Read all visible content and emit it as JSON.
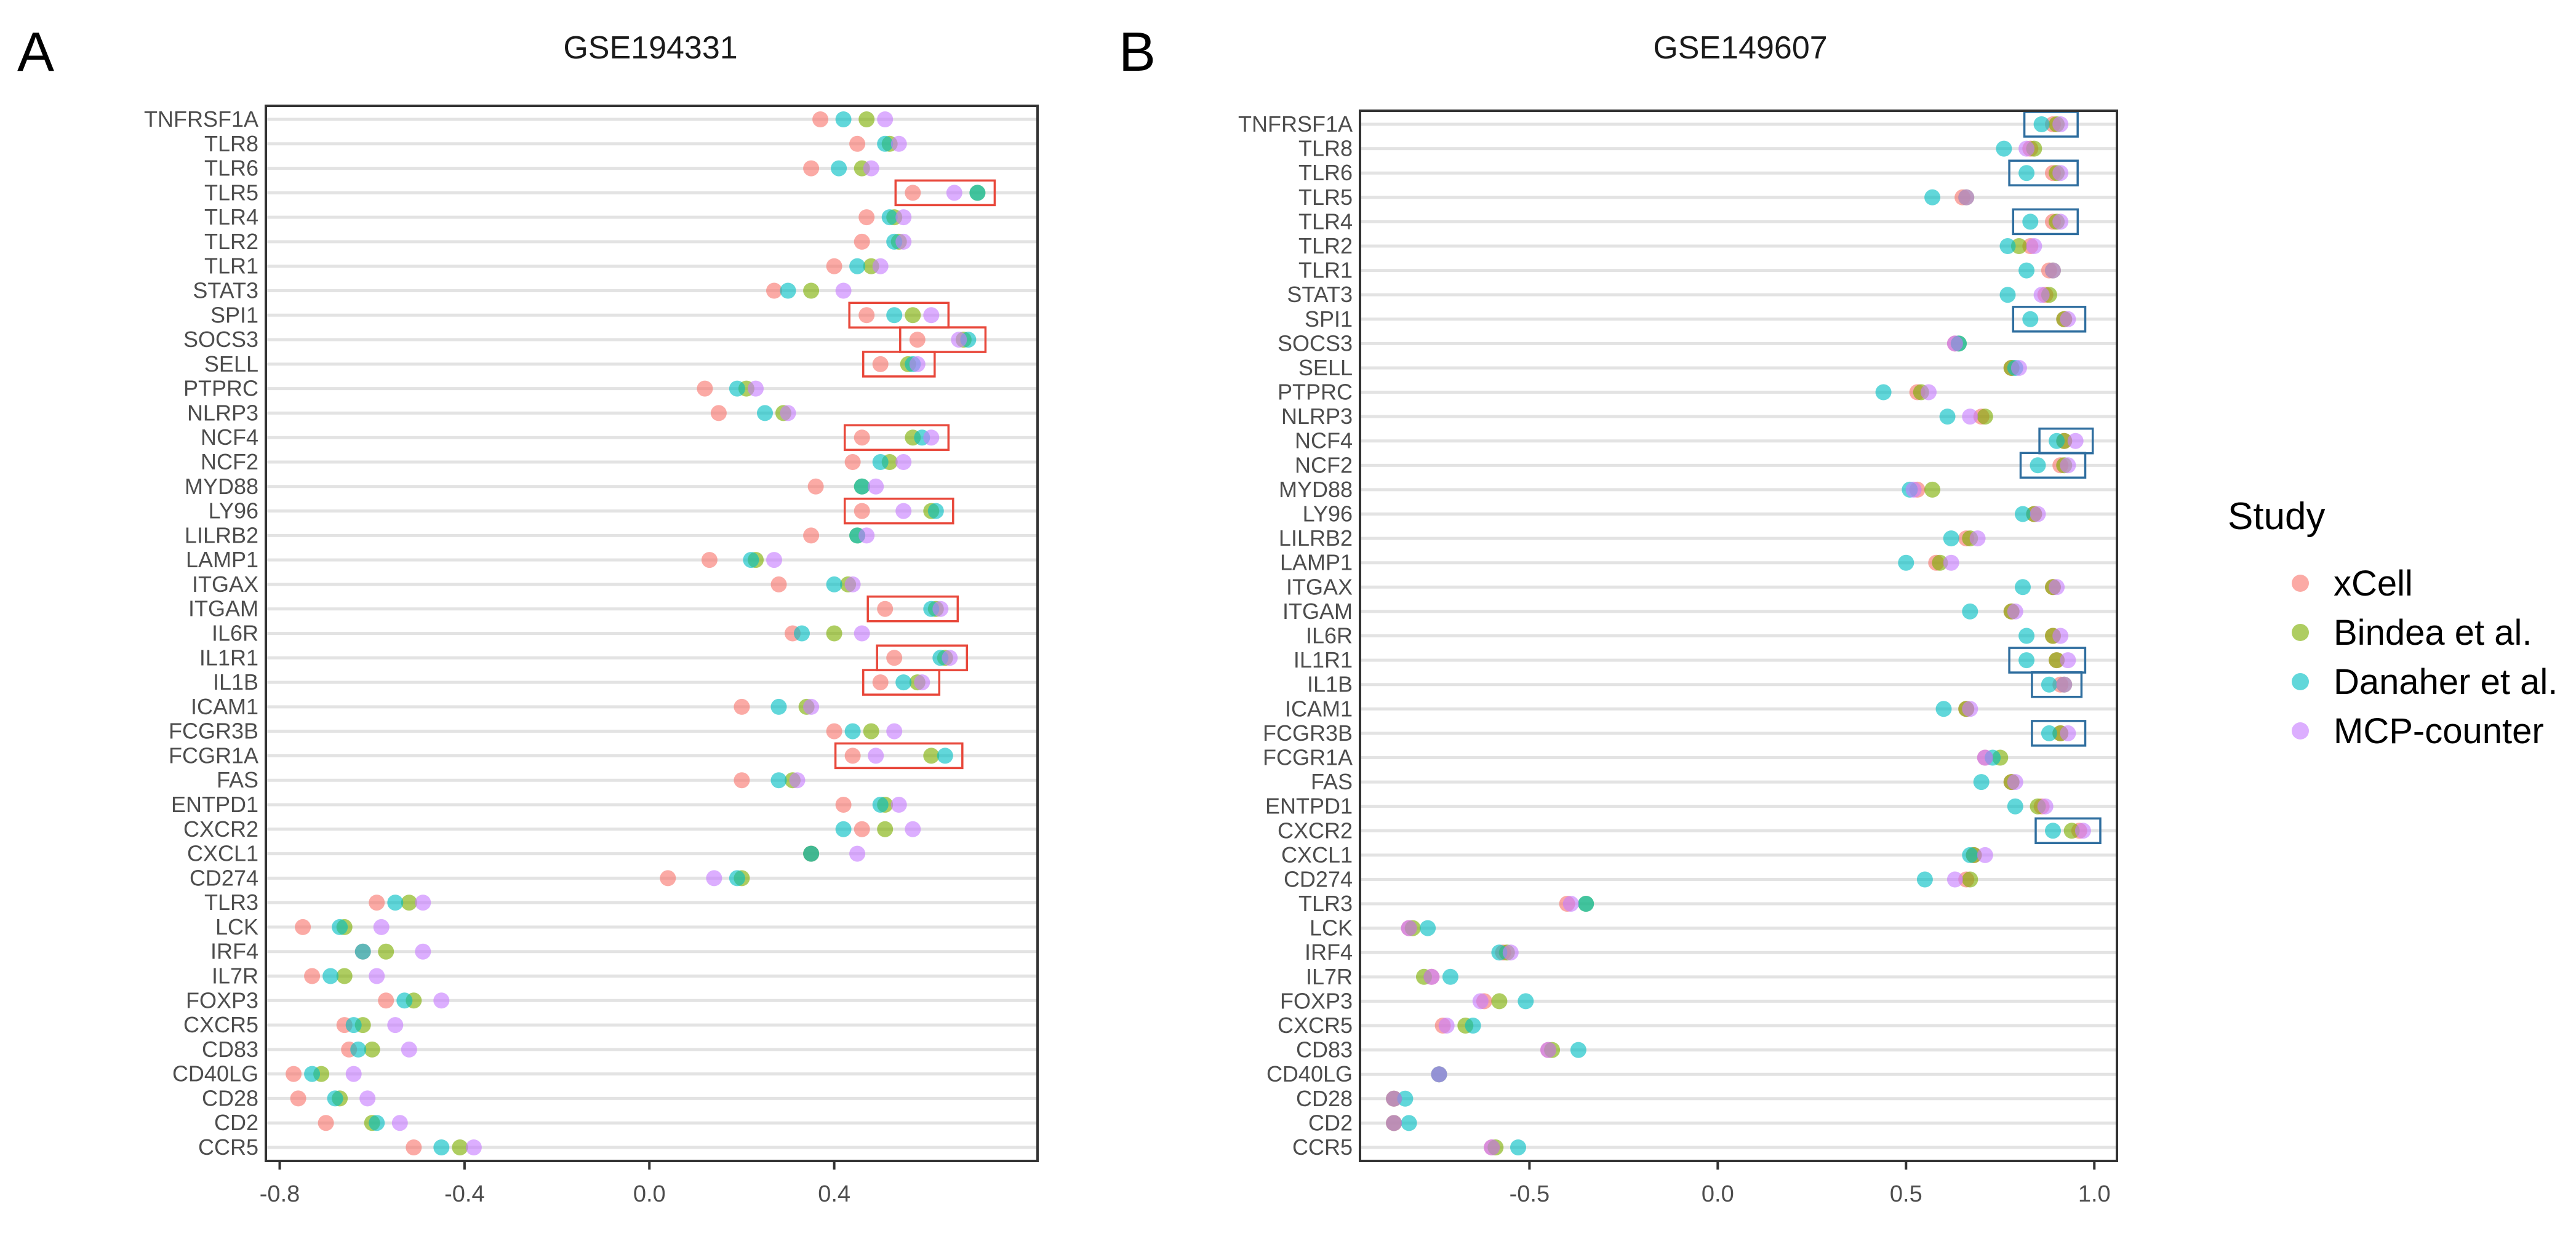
{
  "legend": {
    "title": "Study",
    "entries": [
      {
        "name": "xCell",
        "color": "#F8766D"
      },
      {
        "name": "Bindea et al.",
        "color": "#7CAE00"
      },
      {
        "name": "Danaher et al.",
        "color": "#00BFC4"
      },
      {
        "name": "MCP-counter",
        "color": "#C77CFF"
      }
    ]
  },
  "chart_data": [
    {
      "panel": "A",
      "type": "scatter",
      "title": "GSE194331",
      "xlabel": "",
      "ylabel": "",
      "xlim": [
        -0.83,
        0.84
      ],
      "xticks": [
        -0.8,
        -0.4,
        0.0,
        0.4
      ],
      "xtick_labels": [
        "-0.8",
        "-0.4",
        "0.0",
        "0.4"
      ],
      "grid": true,
      "box_color": "#E8483B",
      "categories": [
        "TNFRSF1A",
        "TLR8",
        "TLR6",
        "TLR5",
        "TLR4",
        "TLR2",
        "TLR1",
        "STAT3",
        "SPI1",
        "SOCS3",
        "SELL",
        "PTPRC",
        "NLRP3",
        "NCF4",
        "NCF2",
        "MYD88",
        "LY96",
        "LILRB2",
        "LAMP1",
        "ITGAX",
        "ITGAM",
        "IL6R",
        "IL1R1",
        "IL1B",
        "ICAM1",
        "FCGR3B",
        "FCGR1A",
        "FAS",
        "ENTPD1",
        "CXCR2",
        "CXCL1",
        "CD274",
        "TLR3",
        "LCK",
        "IRF4",
        "IL7R",
        "FOXP3",
        "CXCR5",
        "CD83",
        "CD40LG",
        "CD28",
        "CD2",
        "CCR5"
      ],
      "series": [
        {
          "name": "xCell",
          "values": [
            0.37,
            0.45,
            0.35,
            0.57,
            0.47,
            0.46,
            0.4,
            0.27,
            0.47,
            0.58,
            0.5,
            0.12,
            0.15,
            0.46,
            0.44,
            0.36,
            0.46,
            0.35,
            0.13,
            0.28,
            0.51,
            0.31,
            0.53,
            0.5,
            0.2,
            0.4,
            0.44,
            0.2,
            0.42,
            0.46,
            0.35,
            0.04,
            -0.59,
            -0.75,
            -0.62,
            -0.73,
            -0.57,
            -0.66,
            -0.65,
            -0.77,
            -0.76,
            -0.7,
            -0.51
          ]
        },
        {
          "name": "Bindea et al.",
          "values": [
            0.47,
            0.52,
            0.46,
            0.71,
            0.53,
            0.54,
            0.48,
            0.35,
            0.57,
            0.68,
            0.56,
            0.21,
            0.29,
            0.57,
            0.52,
            0.46,
            0.61,
            0.45,
            0.23,
            0.43,
            0.62,
            0.4,
            0.64,
            0.58,
            0.34,
            0.48,
            0.61,
            0.31,
            0.51,
            0.51,
            0.35,
            0.2,
            -0.52,
            -0.66,
            -0.57,
            -0.66,
            -0.51,
            -0.62,
            -0.6,
            -0.71,
            -0.67,
            -0.6,
            -0.41
          ]
        },
        {
          "name": "Danaher et al.",
          "values": [
            0.42,
            0.51,
            0.41,
            0.71,
            0.52,
            0.53,
            0.45,
            0.3,
            0.53,
            0.69,
            0.57,
            0.19,
            0.25,
            0.59,
            0.5,
            0.46,
            0.62,
            0.45,
            0.22,
            0.4,
            0.61,
            0.33,
            0.63,
            0.55,
            0.28,
            0.44,
            0.64,
            0.28,
            0.5,
            0.42,
            0.35,
            0.19,
            -0.55,
            -0.67,
            -0.62,
            -0.69,
            -0.53,
            -0.64,
            -0.63,
            -0.73,
            -0.68,
            -0.59,
            -0.45
          ]
        },
        {
          "name": "MCP-counter",
          "values": [
            0.51,
            0.54,
            0.48,
            0.66,
            0.55,
            0.55,
            0.5,
            0.42,
            0.61,
            0.67,
            0.58,
            0.23,
            0.3,
            0.61,
            0.55,
            0.49,
            0.55,
            0.47,
            0.27,
            0.44,
            0.63,
            0.46,
            0.65,
            0.59,
            0.35,
            0.53,
            0.49,
            0.32,
            0.54,
            0.57,
            0.45,
            0.14,
            -0.49,
            -0.58,
            -0.49,
            -0.59,
            -0.45,
            -0.55,
            -0.52,
            -0.64,
            -0.61,
            -0.54,
            -0.38
          ]
        }
      ],
      "boxed_genes": [
        "TLR5",
        "SPI1",
        "SOCS3",
        "SELL",
        "NCF4",
        "LY96",
        "ITGAM",
        "IL1R1",
        "IL1B",
        "FCGR1A"
      ]
    },
    {
      "panel": "B",
      "type": "scatter",
      "title": "GSE149607",
      "xlabel": "",
      "ylabel": "",
      "xlim": [
        -0.95,
        1.06
      ],
      "xticks": [
        -0.5,
        0.0,
        0.5,
        1.0
      ],
      "xtick_labels": [
        "-0.5",
        "0.0",
        "0.5",
        "1.0"
      ],
      "grid": true,
      "box_color": "#2F6E9F",
      "categories": [
        "TNFRSF1A",
        "TLR8",
        "TLR6",
        "TLR5",
        "TLR4",
        "TLR2",
        "TLR1",
        "STAT3",
        "SPI1",
        "SOCS3",
        "SELL",
        "PTPRC",
        "NLRP3",
        "NCF4",
        "NCF2",
        "MYD88",
        "LY96",
        "LILRB2",
        "LAMP1",
        "ITGAX",
        "ITGAM",
        "IL6R",
        "IL1R1",
        "IL1B",
        "ICAM1",
        "FCGR3B",
        "FCGR1A",
        "FAS",
        "ENTPD1",
        "CXCR2",
        "CXCL1",
        "CD274",
        "TLR3",
        "LCK",
        "IRF4",
        "IL7R",
        "FOXP3",
        "CXCR5",
        "CD83",
        "CD40LG",
        "CD28",
        "CD2",
        "CCR5"
      ],
      "series": [
        {
          "name": "xCell",
          "values": [
            0.89,
            0.83,
            0.89,
            0.65,
            0.89,
            0.83,
            0.88,
            0.87,
            0.92,
            0.63,
            0.78,
            0.53,
            0.7,
            0.92,
            0.91,
            0.53,
            0.84,
            0.66,
            0.58,
            0.89,
            0.78,
            0.89,
            0.9,
            0.91,
            0.66,
            0.91,
            0.71,
            0.78,
            0.86,
            0.96,
            0.68,
            0.66,
            -0.4,
            -0.82,
            -0.57,
            -0.76,
            -0.62,
            -0.73,
            -0.45,
            -0.74,
            -0.86,
            -0.86,
            -0.6
          ]
        },
        {
          "name": "Bindea et al.",
          "values": [
            0.9,
            0.84,
            0.9,
            0.66,
            0.9,
            0.8,
            0.89,
            0.88,
            0.92,
            0.64,
            0.78,
            0.54,
            0.71,
            0.92,
            0.92,
            0.57,
            0.84,
            0.67,
            0.59,
            0.89,
            0.78,
            0.89,
            0.9,
            0.92,
            0.66,
            0.91,
            0.75,
            0.78,
            0.85,
            0.94,
            0.68,
            0.67,
            -0.35,
            -0.81,
            -0.56,
            -0.78,
            -0.58,
            -0.67,
            -0.44,
            -0.74,
            -0.86,
            -0.86,
            -0.59
          ]
        },
        {
          "name": "Danaher et al.",
          "values": [
            0.86,
            0.76,
            0.82,
            0.57,
            0.83,
            0.77,
            0.82,
            0.77,
            0.83,
            0.64,
            0.79,
            0.44,
            0.61,
            0.9,
            0.85,
            0.51,
            0.81,
            0.62,
            0.5,
            0.81,
            0.67,
            0.82,
            0.82,
            0.88,
            0.6,
            0.88,
            0.73,
            0.7,
            0.79,
            0.89,
            0.67,
            0.55,
            -0.35,
            -0.77,
            -0.58,
            -0.71,
            -0.51,
            -0.65,
            -0.37,
            -0.74,
            -0.83,
            -0.82,
            -0.53
          ]
        },
        {
          "name": "MCP-counter",
          "values": [
            0.91,
            0.82,
            0.91,
            0.66,
            0.91,
            0.84,
            0.89,
            0.86,
            0.93,
            0.63,
            0.8,
            0.56,
            0.67,
            0.95,
            0.93,
            0.52,
            0.85,
            0.69,
            0.62,
            0.9,
            0.79,
            0.91,
            0.93,
            0.92,
            0.67,
            0.93,
            0.71,
            0.79,
            0.87,
            0.97,
            0.71,
            0.63,
            -0.39,
            -0.82,
            -0.55,
            -0.76,
            -0.63,
            -0.72,
            -0.45,
            -0.74,
            -0.86,
            -0.86,
            -0.6
          ]
        }
      ],
      "boxed_genes": [
        "TNFRSF1A",
        "TLR6",
        "TLR4",
        "SPI1",
        "NCF4",
        "NCF2",
        "IL1R1",
        "IL1B",
        "FCGR3B",
        "CXCR2"
      ]
    }
  ]
}
